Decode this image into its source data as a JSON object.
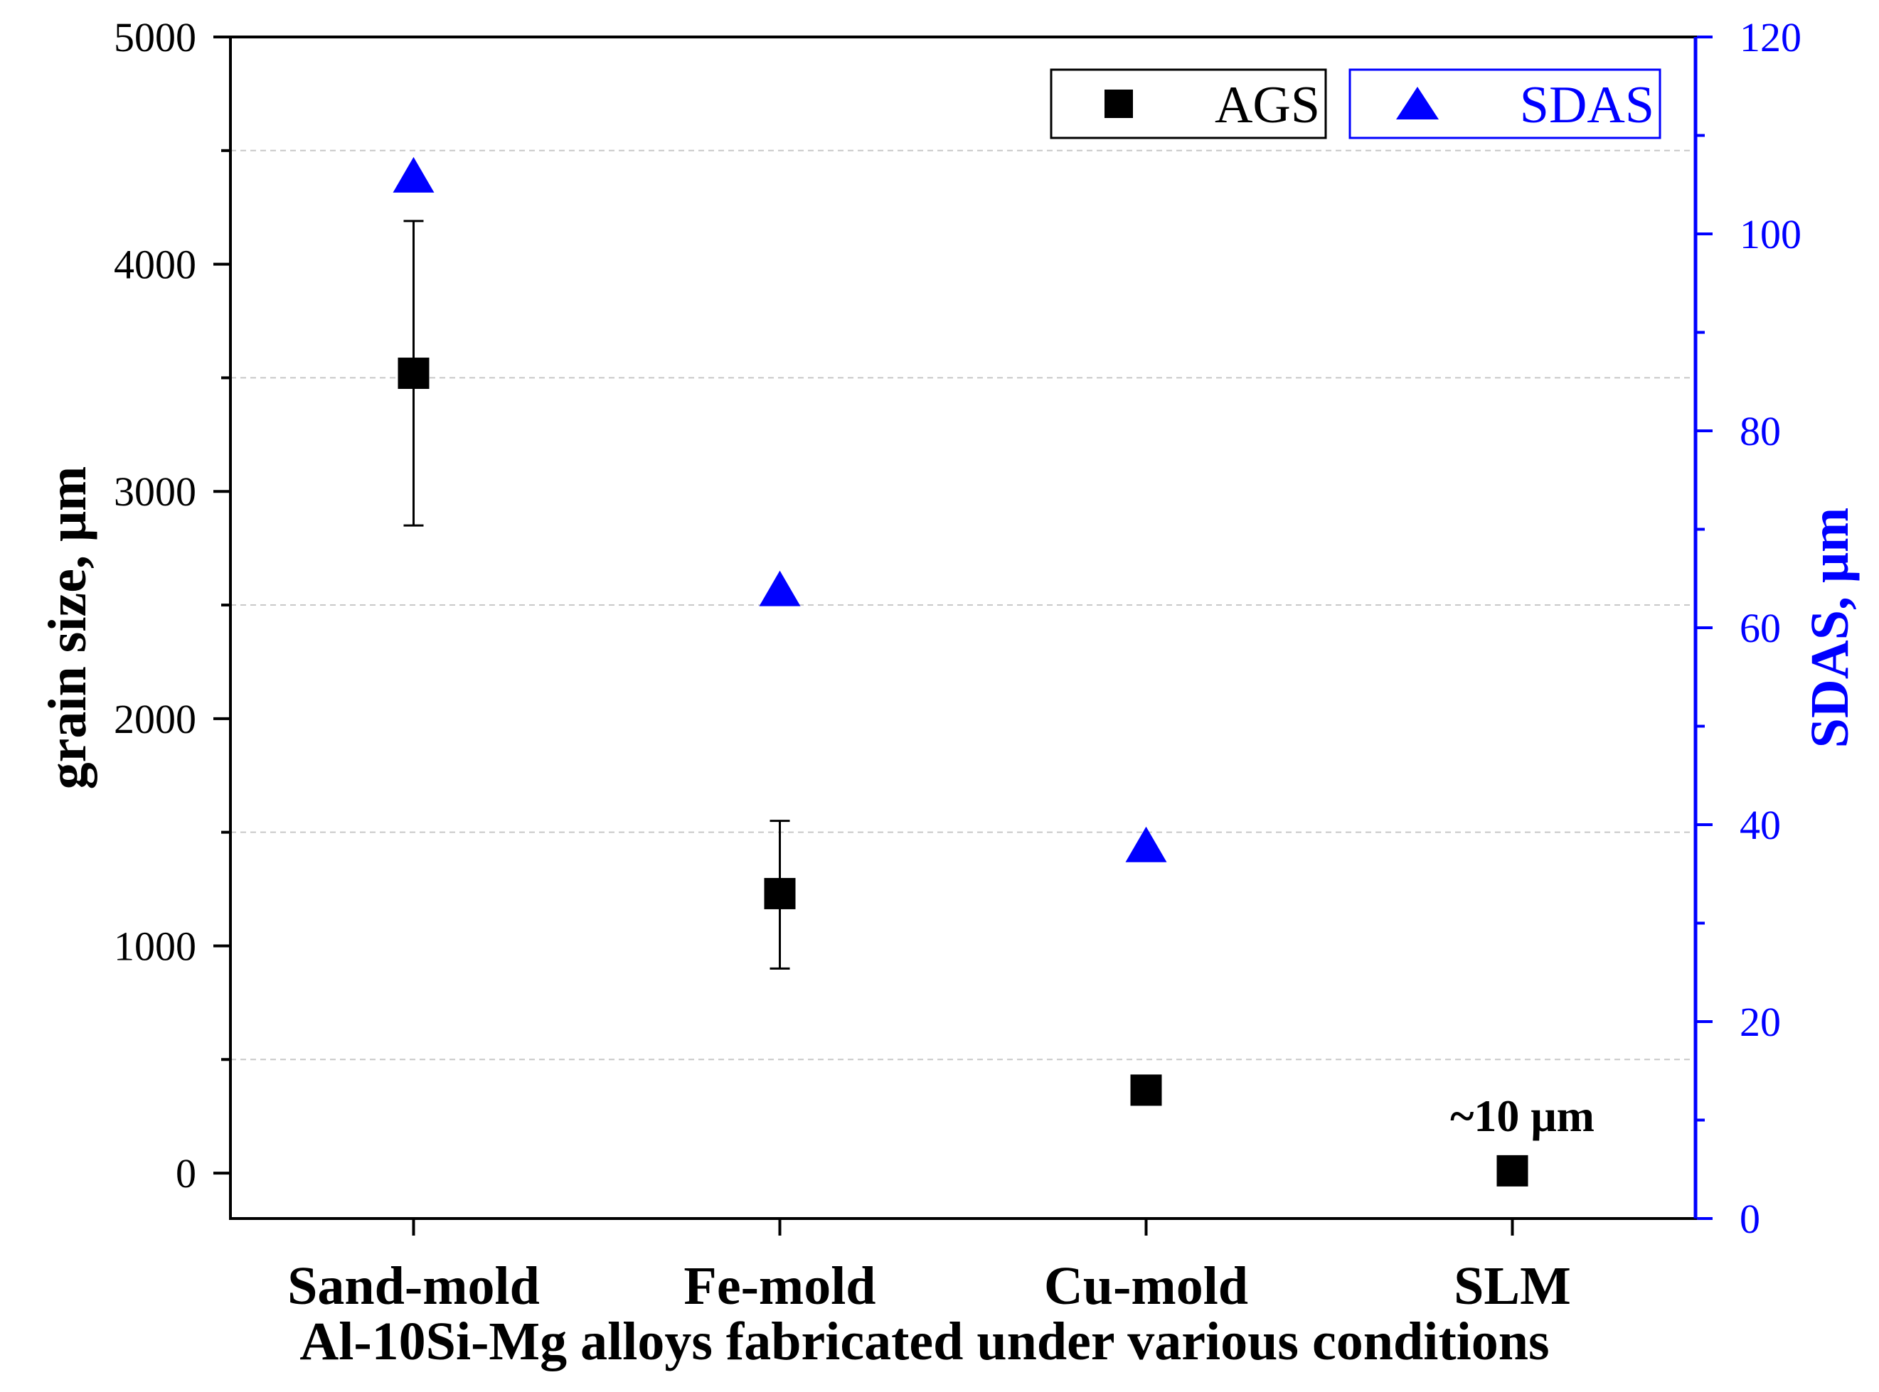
{
  "chart_data": {
    "type": "scatter",
    "categories": [
      "Sand-mold",
      "Fe-mold",
      "Cu-mold",
      "SLM"
    ],
    "series": [
      {
        "name": "AGS",
        "axis": "left",
        "marker": "square",
        "color": "#000000",
        "values": [
          3520,
          1230,
          365,
          10
        ],
        "error_low": [
          2850,
          900,
          null,
          null
        ],
        "error_high": [
          4190,
          1550,
          null,
          null
        ]
      },
      {
        "name": "SDAS",
        "axis": "right",
        "marker": "triangle",
        "color": "#0000ff",
        "values": [
          106,
          64,
          38,
          null
        ]
      }
    ],
    "xlabel": "Al-10Si-Mg alloys fabricated under various conditions",
    "ylabel": "grain size, μm",
    "y2label": "SDAS, μm",
    "ylim": [
      -200,
      5000
    ],
    "y2lim": [
      0,
      120
    ],
    "yticks": [
      "0",
      "1000",
      "2000",
      "3000",
      "4000",
      "5000"
    ],
    "y2ticks": [
      "0",
      "20",
      "40",
      "60",
      "80",
      "100",
      "120"
    ],
    "grid": true,
    "legend": "top-right",
    "annotations": [
      {
        "text": "~10 μm",
        "category": "SLM",
        "series": "AGS"
      }
    ]
  }
}
